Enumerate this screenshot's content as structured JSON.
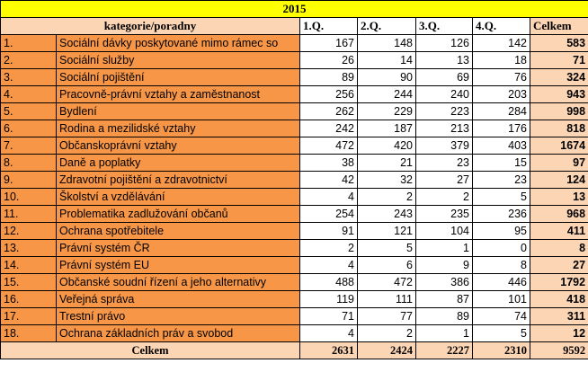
{
  "title": "2015",
  "header": {
    "category": "kategorie/poradny",
    "quarters": [
      "1.Q.",
      "2.Q.",
      "3.Q.",
      "4.Q."
    ],
    "total": "Celkem"
  },
  "rows": [
    {
      "label": "1.",
      "name": "Sociální dávky poskytované mimo rámec so",
      "values": [
        167,
        148,
        126,
        142
      ],
      "total": 583
    },
    {
      "label": "2.",
      "name": "Sociální služby",
      "values": [
        26,
        14,
        13,
        18
      ],
      "total": 71
    },
    {
      "label": "3.",
      "name": "Sociální pojištění",
      "values": [
        89,
        90,
        69,
        76
      ],
      "total": 324
    },
    {
      "label": "4.",
      "name": "Pracovně-právní vztahy a zaměstnanost",
      "values": [
        256,
        244,
        240,
        203
      ],
      "total": 943
    },
    {
      "label": "5.",
      "name": "Bydlení",
      "values": [
        262,
        229,
        223,
        284
      ],
      "total": 998
    },
    {
      "label": "6.",
      "name": "Rodina a mezilidské vztahy",
      "values": [
        242,
        187,
        213,
        176
      ],
      "total": 818
    },
    {
      "label": "7.",
      "name": "Občanskoprávní vztahy",
      "values": [
        472,
        420,
        379,
        403
      ],
      "total": 1674
    },
    {
      "label": "8.",
      "name": "Daně a poplatky",
      "values": [
        38,
        21,
        23,
        15
      ],
      "total": 97
    },
    {
      "label": "9.",
      "name": "Zdravotní pojištění a zdravotnictví",
      "values": [
        42,
        32,
        27,
        23
      ],
      "total": 124
    },
    {
      "label": "10.",
      "name": "Školství a vzdělávání",
      "values": [
        4,
        2,
        2,
        5
      ],
      "total": 13
    },
    {
      "label": "11.",
      "name": "Problematika zadlužování občanů",
      "values": [
        254,
        243,
        235,
        236
      ],
      "total": 968
    },
    {
      "label": "12.",
      "name": "Ochrana spotřebitele",
      "values": [
        91,
        121,
        104,
        95
      ],
      "total": 411
    },
    {
      "label": "13.",
      "name": "Právní systém ČR",
      "values": [
        2,
        5,
        1,
        0
      ],
      "total": 8
    },
    {
      "label": "14.",
      "name": "Právní systém EU",
      "values": [
        4,
        6,
        9,
        8
      ],
      "total": 27
    },
    {
      "label": "15.",
      "name": "Občanské soudní řízení a jeho alternativy",
      "values": [
        488,
        472,
        386,
        446
      ],
      "total": 1792
    },
    {
      "label": "16.",
      "name": "Veřejná správa",
      "values": [
        119,
        111,
        87,
        101
      ],
      "total": 418
    },
    {
      "label": "17.",
      "name": "Trestní právo",
      "values": [
        71,
        77,
        89,
        74
      ],
      "total": 311
    },
    {
      "label": "18.",
      "name": "Ochrana základních práv a svobod",
      "values": [
        4,
        2,
        1,
        5
      ],
      "total": 12
    }
  ],
  "footer": {
    "label": "Celkem",
    "values": [
      2631,
      2424,
      2227,
      2310
    ],
    "total": 9592
  }
}
